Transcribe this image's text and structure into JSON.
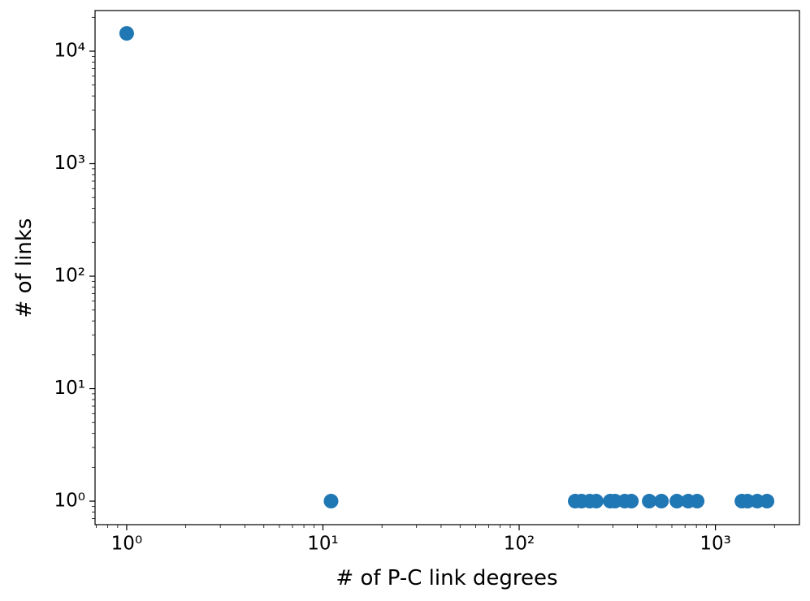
{
  "chart_data": {
    "type": "scatter",
    "xlabel": "# of P-C link degrees",
    "ylabel": "# of links",
    "xscale": "log",
    "yscale": "log",
    "color": "#1f77b4",
    "x": [
      1,
      11,
      193,
      208,
      229,
      247,
      291,
      308,
      345,
      373,
      460,
      531,
      636,
      727,
      807,
      1364,
      1458,
      1634,
      1832
    ],
    "y": [
      14400,
      1,
      1,
      1,
      1,
      1,
      1,
      1,
      1,
      1,
      1,
      1,
      1,
      1,
      1,
      1,
      1,
      1,
      1
    ],
    "xlim": [
      0.69,
      2680
    ],
    "ylim": [
      0.618,
      22970
    ],
    "xticks": [
      {
        "value": 1,
        "label": "10⁰"
      },
      {
        "value": 10,
        "label": "10¹"
      },
      {
        "value": 100,
        "label": "10²"
      },
      {
        "value": 1000,
        "label": "10³"
      }
    ],
    "yticks": [
      {
        "value": 1,
        "label": "10⁰"
      },
      {
        "value": 10,
        "label": "10¹"
      },
      {
        "value": 100,
        "label": "10²"
      },
      {
        "value": 1000,
        "label": "10³"
      },
      {
        "value": 10000,
        "label": "10⁴"
      }
    ],
    "xminorticks": [
      0.7,
      0.8,
      0.9,
      2,
      3,
      4,
      5,
      6,
      7,
      8,
      9,
      20,
      30,
      40,
      50,
      60,
      70,
      80,
      90,
      200,
      300,
      400,
      500,
      600,
      700,
      800,
      900,
      2000
    ],
    "yminorticks": [
      0.7,
      0.8,
      0.9,
      2,
      3,
      4,
      5,
      6,
      7,
      8,
      9,
      20,
      30,
      40,
      50,
      60,
      70,
      80,
      90,
      200,
      300,
      400,
      500,
      600,
      700,
      800,
      900,
      2000,
      3000,
      4000,
      5000,
      6000,
      7000,
      8000,
      9000,
      20000
    ]
  }
}
